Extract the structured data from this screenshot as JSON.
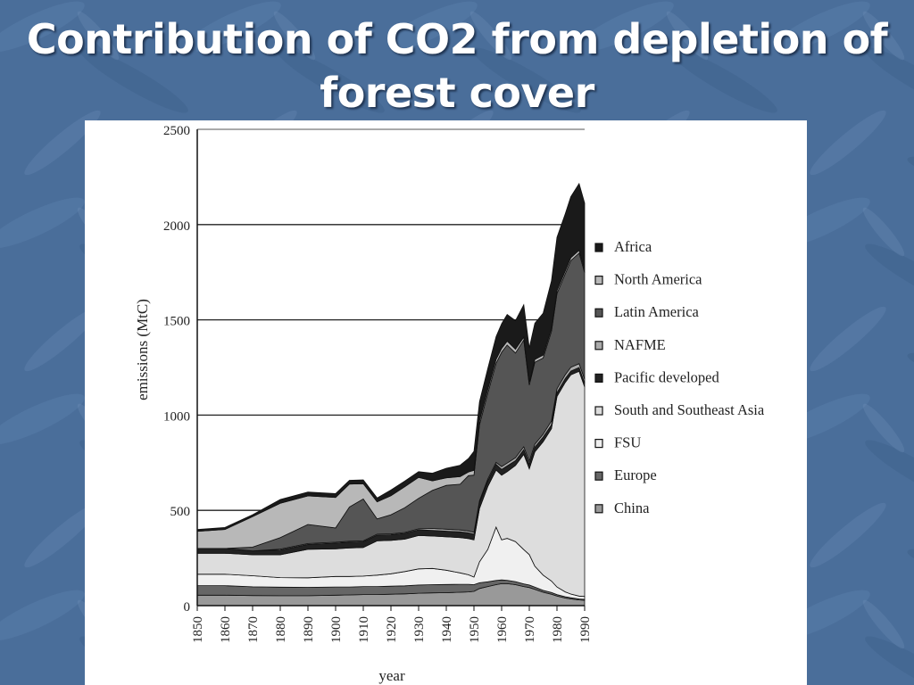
{
  "slide": {
    "title": "Contribution of CO2 from depletion of forest cover"
  },
  "colors": {
    "background": "#4a6e9a",
    "panel": "#ffffff",
    "Africa": "#1a1a1a",
    "North America": "#b8b8b8",
    "Latin America": "#555555",
    "NAFME": "#aaaaaa",
    "Pacific developed": "#222222",
    "South and Southeast Asia": "#dddddd",
    "FSU": "#f0f0f0",
    "Europe": "#666666",
    "China": "#999999"
  },
  "chart_data": {
    "type": "area",
    "stacked": true,
    "title": "",
    "xlabel": "year",
    "ylabel": "emissions (MtC)",
    "xlim": [
      1850,
      1990
    ],
    "ylim": [
      0,
      2500
    ],
    "x_ticks": [
      "1850",
      "1860",
      "1870",
      "1880",
      "1890",
      "1900",
      "1910",
      "1920",
      "1930",
      "1940",
      "1950",
      "1960",
      "1970",
      "1980",
      "1990"
    ],
    "y_ticks": [
      "0",
      "500",
      "1000",
      "1500",
      "2000",
      "2500"
    ],
    "grid": "horizontal",
    "legend_position": "right",
    "x": [
      1850,
      1860,
      1870,
      1880,
      1890,
      1900,
      1905,
      1910,
      1915,
      1920,
      1925,
      1930,
      1935,
      1940,
      1945,
      1948,
      1950,
      1952,
      1955,
      1958,
      1960,
      1962,
      1965,
      1968,
      1970,
      1972,
      1975,
      1978,
      1980,
      1983,
      1985,
      1988,
      1990
    ],
    "series": [
      {
        "name": "China",
        "values": [
          55,
          55,
          53,
          52,
          52,
          55,
          56,
          58,
          58,
          60,
          62,
          65,
          67,
          68,
          70,
          72,
          75,
          90,
          100,
          110,
          115,
          115,
          110,
          100,
          95,
          85,
          70,
          60,
          50,
          40,
          35,
          30,
          28
        ]
      },
      {
        "name": "Europe",
        "values": [
          50,
          50,
          46,
          45,
          44,
          43,
          42,
          42,
          42,
          42,
          42,
          43,
          43,
          43,
          42,
          40,
          35,
          30,
          25,
          22,
          20,
          18,
          16,
          14,
          13,
          12,
          10,
          9,
          8,
          7,
          6,
          5,
          5
        ]
      },
      {
        "name": "FSU",
        "values": [
          60,
          60,
          58,
          50,
          50,
          55,
          55,
          55,
          60,
          65,
          75,
          85,
          85,
          75,
          60,
          50,
          40,
          110,
          170,
          280,
          210,
          220,
          210,
          180,
          160,
          110,
          80,
          60,
          40,
          25,
          20,
          15,
          15
        ]
      },
      {
        "name": "South and Southeast Asia",
        "values": [
          110,
          110,
          110,
          120,
          150,
          145,
          150,
          150,
          180,
          175,
          170,
          175,
          170,
          175,
          185,
          190,
          195,
          280,
          330,
          300,
          340,
          350,
          400,
          500,
          450,
          600,
          700,
          800,
          1000,
          1100,
          1150,
          1180,
          1100
        ]
      },
      {
        "name": "Pacific developed",
        "values": [
          25,
          25,
          20,
          25,
          25,
          30,
          30,
          30,
          30,
          30,
          30,
          30,
          30,
          30,
          30,
          30,
          30,
          30,
          30,
          30,
          30,
          30,
          25,
          25,
          25,
          25,
          25,
          20,
          20,
          20,
          20,
          20,
          20
        ]
      },
      {
        "name": "NAFME",
        "values": [
          0,
          0,
          0,
          5,
          5,
          5,
          5,
          5,
          5,
          5,
          5,
          5,
          10,
          10,
          10,
          10,
          10,
          10,
          10,
          10,
          15,
          15,
          15,
          15,
          15,
          15,
          15,
          20,
          20,
          20,
          20,
          20,
          20
        ]
      },
      {
        "name": "Latin America",
        "values": [
          0,
          0,
          20,
          60,
          100,
          75,
          180,
          220,
          80,
          100,
          130,
          160,
          200,
          230,
          240,
          290,
          300,
          400,
          450,
          520,
          600,
          620,
          550,
          560,
          400,
          430,
          400,
          470,
          500,
          530,
          560,
          580,
          560
        ]
      },
      {
        "name": "North America",
        "values": [
          90,
          100,
          160,
          180,
          150,
          160,
          120,
          80,
          90,
          100,
          110,
          110,
          50,
          40,
          40,
          20,
          25,
          20,
          20,
          20,
          20,
          20,
          20,
          15,
          15,
          15,
          15,
          15,
          15,
          15,
          15,
          15,
          15
        ]
      },
      {
        "name": "Africa",
        "values": [
          10,
          10,
          10,
          20,
          20,
          20,
          20,
          20,
          20,
          30,
          30,
          30,
          40,
          50,
          60,
          70,
          100,
          100,
          110,
          120,
          130,
          140,
          150,
          170,
          180,
          190,
          220,
          250,
          280,
          300,
          320,
          350,
          350
        ]
      }
    ],
    "legend_order": [
      "Africa",
      "North America",
      "Latin America",
      "NAFME",
      "Pacific developed",
      "South and Southeast Asia",
      "FSU",
      "Europe",
      "China"
    ]
  }
}
